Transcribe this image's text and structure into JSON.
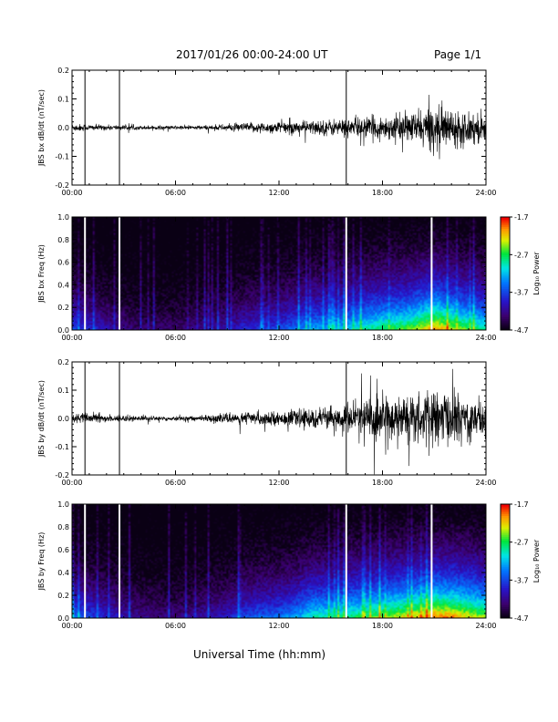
{
  "header": {
    "title": "2017/01/26  00:00-24:00 UT",
    "page": "Page 1/1"
  },
  "x_axis_title": "Universal Time (hh:mm)",
  "chart_data": [
    {
      "type": "line",
      "ylabel": "JBS bx dB/dt (nT/sec)",
      "xlim": [
        0,
        24
      ],
      "ylim": [
        -0.2,
        0.2
      ],
      "yticks": [
        -0.2,
        -0.1,
        0.0,
        0.1,
        0.2
      ],
      "ytick_labels": [
        "-0.2",
        "-0.1",
        "0.0",
        "0.1",
        "0.2"
      ],
      "xticks": [
        0,
        6,
        12,
        18,
        24
      ],
      "xtick_labels": [
        "00:00",
        "06:00",
        "12:00",
        "18:00",
        "24:00"
      ],
      "envelope": {
        "hours": [
          0,
          1,
          2,
          3,
          4,
          5,
          6,
          7,
          8,
          9,
          10,
          11,
          12,
          13,
          14,
          15,
          16,
          17,
          18,
          19,
          20,
          21,
          22,
          23,
          24
        ],
        "amplitude": [
          0.012,
          0.01,
          0.008,
          0.007,
          0.006,
          0.006,
          0.006,
          0.006,
          0.007,
          0.01,
          0.014,
          0.016,
          0.018,
          0.02,
          0.022,
          0.025,
          0.028,
          0.032,
          0.035,
          0.04,
          0.05,
          0.07,
          0.055,
          0.05,
          0.045
        ]
      },
      "spikes_hours": [
        0.75,
        2.75,
        15.9
      ]
    },
    {
      "type": "heatmap",
      "ylabel": "JBS bx Freq (Hz)",
      "xlim": [
        0,
        24
      ],
      "ylim": [
        0.0,
        1.0
      ],
      "yticks": [
        0.0,
        0.2,
        0.4,
        0.6,
        0.8,
        1.0
      ],
      "ytick_labels": [
        "0.0",
        "0.2",
        "0.4",
        "0.6",
        "0.8",
        "1.0"
      ],
      "xticks": [
        0,
        6,
        12,
        18,
        24
      ],
      "xtick_labels": [
        "00:00",
        "06:00",
        "12:00",
        "18:00",
        "24:00"
      ],
      "colorbar": {
        "label": "Log₁₀ Power",
        "min": -4.7,
        "max": -1.7,
        "ticks": [
          -4.7,
          -3.7,
          -2.7,
          -1.7
        ],
        "tick_labels": [
          "-4.7",
          "-3.7",
          "-2.7",
          "-1.7"
        ]
      },
      "data_gaps_hours": [
        0.75,
        2.75,
        15.9,
        20.85
      ],
      "activity_profile": {
        "hours": [
          0,
          1,
          2,
          3,
          4,
          5,
          6,
          7,
          8,
          9,
          10,
          11,
          12,
          13,
          14,
          15,
          16,
          17,
          18,
          19,
          20,
          21,
          22,
          23,
          24
        ],
        "level": [
          0.35,
          0.3,
          0.25,
          0.2,
          0.18,
          0.18,
          0.18,
          0.2,
          0.22,
          0.25,
          0.3,
          0.32,
          0.34,
          0.4,
          0.45,
          0.45,
          0.5,
          0.55,
          0.6,
          0.62,
          0.68,
          0.78,
          0.7,
          0.62,
          0.55
        ]
      }
    },
    {
      "type": "line",
      "ylabel": "JBS by dB/dt (nT/sec)",
      "xlim": [
        0,
        24
      ],
      "ylim": [
        -0.2,
        0.2
      ],
      "yticks": [
        -0.2,
        -0.1,
        0.0,
        0.1,
        0.2
      ],
      "ytick_labels": [
        "-0.2",
        "-0.1",
        "0.0",
        "0.1",
        "0.2"
      ],
      "xticks": [
        0,
        6,
        12,
        18,
        24
      ],
      "xtick_labels": [
        "00:00",
        "06:00",
        "12:00",
        "18:00",
        "24:00"
      ],
      "envelope": {
        "hours": [
          0,
          1,
          2,
          3,
          4,
          5,
          6,
          7,
          8,
          9,
          10,
          11,
          12,
          13,
          14,
          15,
          16,
          17,
          18,
          19,
          20,
          21,
          22,
          23,
          24
        ],
        "amplitude": [
          0.015,
          0.014,
          0.012,
          0.01,
          0.008,
          0.007,
          0.007,
          0.008,
          0.01,
          0.014,
          0.02,
          0.02,
          0.02,
          0.025,
          0.032,
          0.03,
          0.045,
          0.06,
          0.075,
          0.07,
          0.07,
          0.085,
          0.08,
          0.07,
          0.065
        ]
      },
      "spikes_hours": [
        0.75,
        2.75,
        15.9
      ]
    },
    {
      "type": "heatmap",
      "ylabel": "JBS by Freq (Hz)",
      "xlim": [
        0,
        24
      ],
      "ylim": [
        0.0,
        1.0
      ],
      "yticks": [
        0.0,
        0.2,
        0.4,
        0.6,
        0.8,
        1.0
      ],
      "ytick_labels": [
        "0.0",
        "0.2",
        "0.4",
        "0.6",
        "0.8",
        "1.0"
      ],
      "xticks": [
        0,
        6,
        12,
        18,
        24
      ],
      "xtick_labels": [
        "00:00",
        "06:00",
        "12:00",
        "18:00",
        "24:00"
      ],
      "colorbar": {
        "label": "Log₁₀ Power",
        "min": -4.7,
        "max": -1.7,
        "ticks": [
          -4.7,
          -3.7,
          -2.7,
          -1.7
        ],
        "tick_labels": [
          "-4.7",
          "-3.7",
          "-2.7",
          "-1.7"
        ]
      },
      "data_gaps_hours": [
        0.75,
        2.75,
        15.9,
        20.85
      ],
      "activity_profile": {
        "hours": [
          0,
          1,
          2,
          3,
          4,
          5,
          6,
          7,
          8,
          9,
          10,
          11,
          12,
          13,
          14,
          15,
          16,
          17,
          18,
          19,
          20,
          21,
          22,
          23,
          24
        ],
        "level": [
          0.4,
          0.35,
          0.3,
          0.25,
          0.22,
          0.2,
          0.2,
          0.22,
          0.25,
          0.28,
          0.35,
          0.38,
          0.4,
          0.45,
          0.55,
          0.55,
          0.58,
          0.62,
          0.66,
          0.7,
          0.74,
          0.8,
          0.78,
          0.72,
          0.66
        ]
      }
    }
  ]
}
